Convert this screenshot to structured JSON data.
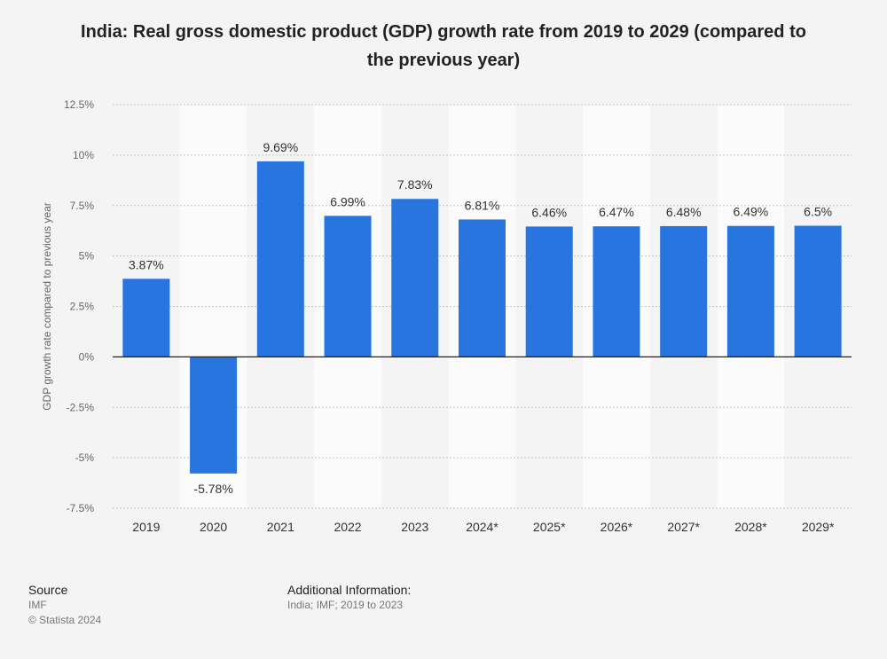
{
  "title_line1": "India: Real gross domestic product (GDP) growth rate from 2019 to 2029 (compared to",
  "title_line2": "the previous year)",
  "chart_data": {
    "type": "bar",
    "title": "India: Real gross domestic product (GDP) growth rate from 2019 to 2029 (compared to the previous year)",
    "xlabel": "",
    "ylabel": "GDP growth rate compared to previous year",
    "categories": [
      "2019",
      "2020",
      "2021",
      "2022",
      "2023",
      "2024*",
      "2025*",
      "2026*",
      "2027*",
      "2028*",
      "2029*"
    ],
    "values": [
      3.87,
      -5.78,
      9.69,
      6.99,
      7.83,
      6.81,
      6.46,
      6.47,
      6.48,
      6.49,
      6.5
    ],
    "value_labels": [
      "3.87%",
      "-5.78%",
      "9.69%",
      "6.99%",
      "7.83%",
      "6.81%",
      "6.46%",
      "6.47%",
      "6.48%",
      "6.49%",
      "6.5%"
    ],
    "ylim": [
      -7.5,
      12.5
    ],
    "yticks": [
      12.5,
      10,
      7.5,
      5,
      2.5,
      0,
      -2.5,
      -5,
      -7.5
    ],
    "ytick_labels": [
      "12.5%",
      "10%",
      "7.5%",
      "5%",
      "2.5%",
      "0%",
      "-2.5%",
      "-5%",
      "-7.5%"
    ],
    "grid": true,
    "bar_color": "#2875e0",
    "alt_band_color": "#fbfbfb"
  },
  "source": {
    "heading": "Source",
    "lines": [
      "IMF",
      "© Statista 2024"
    ]
  },
  "additional": {
    "heading": "Additional Information:",
    "text": "India; IMF; 2019 to 2023"
  }
}
